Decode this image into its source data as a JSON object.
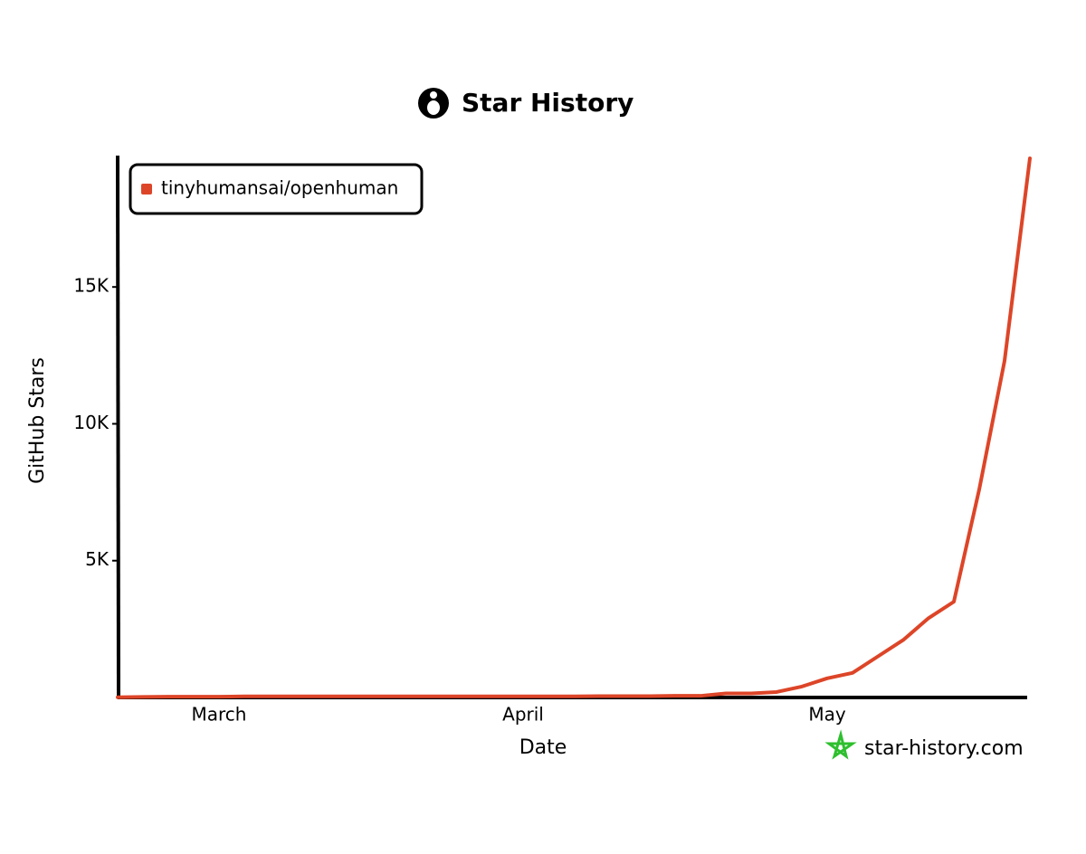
{
  "chart_data": {
    "type": "line",
    "title": "Star History",
    "x_label": "Date",
    "y_label": "GitHub Stars",
    "watermark": "star-history.com",
    "categories": [
      null,
      null,
      null,
      null,
      "March",
      null,
      null,
      null,
      null,
      null,
      null,
      null,
      null,
      null,
      null,
      null,
      "April",
      null,
      null,
      null,
      null,
      null,
      null,
      null,
      null,
      null,
      null,
      null,
      "May",
      null,
      null,
      null,
      null,
      null,
      null,
      null,
      null
    ],
    "series": [
      {
        "name": "tinyhumansai/openhuman",
        "color": "#dd4528",
        "values": [
          10,
          20,
          30,
          30,
          30,
          40,
          40,
          40,
          40,
          40,
          40,
          40,
          40,
          40,
          40,
          40,
          40,
          40,
          40,
          50,
          50,
          50,
          60,
          60,
          150,
          150,
          200,
          400,
          700,
          900,
          1500,
          2100,
          2900,
          3500,
          7600,
          12300,
          19700
        ]
      }
    ],
    "ylim": [
      0,
      19800
    ],
    "yticks": [
      {
        "value": 5000,
        "label": "5K"
      },
      {
        "value": 10000,
        "label": "10K"
      },
      {
        "value": 15000,
        "label": "15K"
      }
    ],
    "legend": "top-left"
  }
}
